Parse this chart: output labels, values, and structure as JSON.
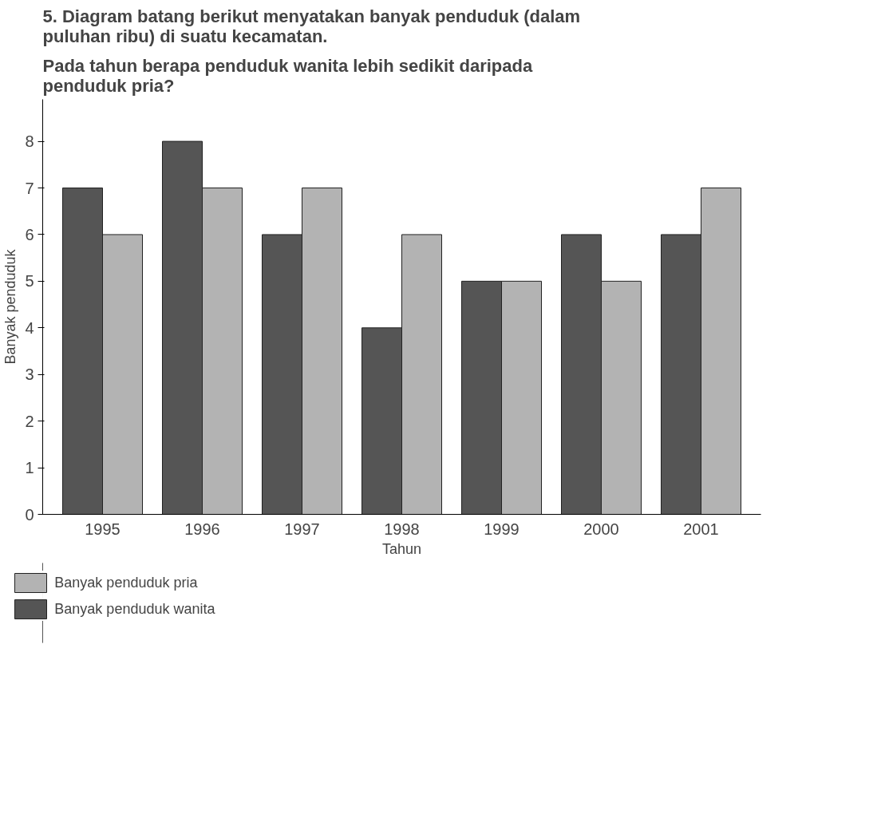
{
  "chart_data": {
    "type": "bar",
    "title": "5. Diagram batang berikut menyatakan banyak penduduk (dalam puluhan ribu) di suatu kecamatan.",
    "subtitle": "Pada tahun berapa penduduk wanita lebih sedikit daripada penduduk pria?",
    "xlabel": "Tahun",
    "ylabel": "Banyak penduduk",
    "categories": [
      "1995",
      "1996",
      "1997",
      "1998",
      "1999",
      "2000",
      "2001"
    ],
    "series": [
      {
        "name": "Banyak penduduk wanita",
        "color": "#555555",
        "values": [
          7,
          8,
          6,
          4,
          5,
          6,
          6
        ]
      },
      {
        "name": "Banyak penduduk pria",
        "color": "#b3b3b3",
        "values": [
          6,
          7,
          7,
          6,
          5,
          5,
          7
        ]
      }
    ],
    "ylim": [
      0,
      8.9
    ],
    "yticks": [
      0,
      1,
      2,
      3,
      4,
      5,
      6,
      7,
      8
    ],
    "grid": false,
    "legend": "bottom left"
  }
}
